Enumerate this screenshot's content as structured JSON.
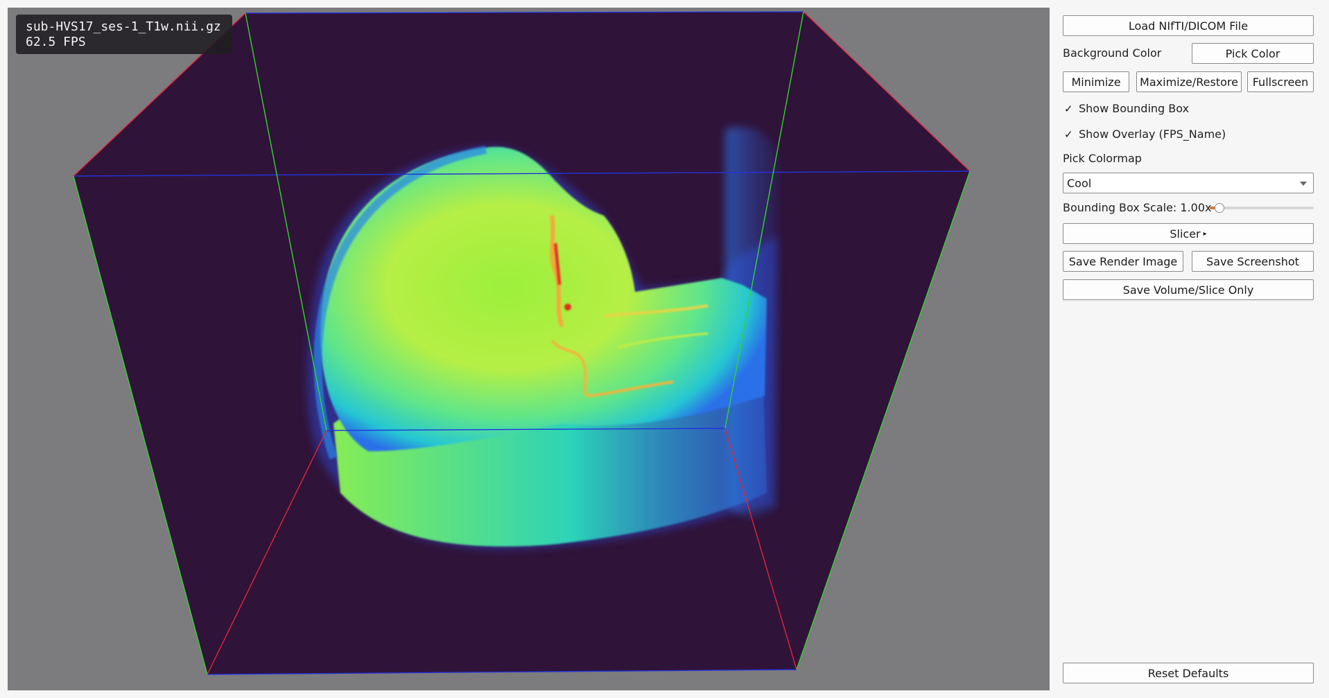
{
  "viewport": {
    "background_color": "#7c7b7e",
    "volume_background": "#301339",
    "colormap_preview": [
      "#2a67e8",
      "#1fd0c8",
      "#a9f03f",
      "#ffb13b",
      "#e22a1c"
    ],
    "bounding_box_colors": {
      "x_axis": "#e0263a",
      "y_axis": "#2fd62f",
      "z_axis": "#2233d8"
    },
    "overlay": {
      "file_name": "sub-HVS17_ses-1_T1w.nii.gz",
      "fps": "62.5 FPS"
    }
  },
  "panel": {
    "load_button": "Load NIfTI/DICOM File",
    "background_color_label": "Background Color",
    "pick_color_button": "Pick Color",
    "minimize_button": "Minimize",
    "maximize_button": "Maximize/Restore",
    "fullscreen_button": "Fullscreen",
    "show_bounding_box": {
      "label": "Show Bounding Box",
      "checked": true,
      "mark": "✓"
    },
    "show_overlay": {
      "label": "Show Overlay (FPS_Name)",
      "checked": true,
      "mark": "✓"
    },
    "pick_colormap_label": "Pick Colormap",
    "colormap_value": "Cool",
    "bbox_scale": {
      "label": "Bounding Box Scale: 1.00x",
      "value": 1.0,
      "fraction": 0.09
    },
    "slicer_button": "Slicer",
    "slicer_indicator": "▸",
    "save_render_button": "Save Render Image",
    "save_screenshot_button": "Save Screenshot",
    "save_volume_button": "Save Volume/Slice Only",
    "reset_button": "Reset Defaults"
  },
  "accent_color": "#d9772f"
}
